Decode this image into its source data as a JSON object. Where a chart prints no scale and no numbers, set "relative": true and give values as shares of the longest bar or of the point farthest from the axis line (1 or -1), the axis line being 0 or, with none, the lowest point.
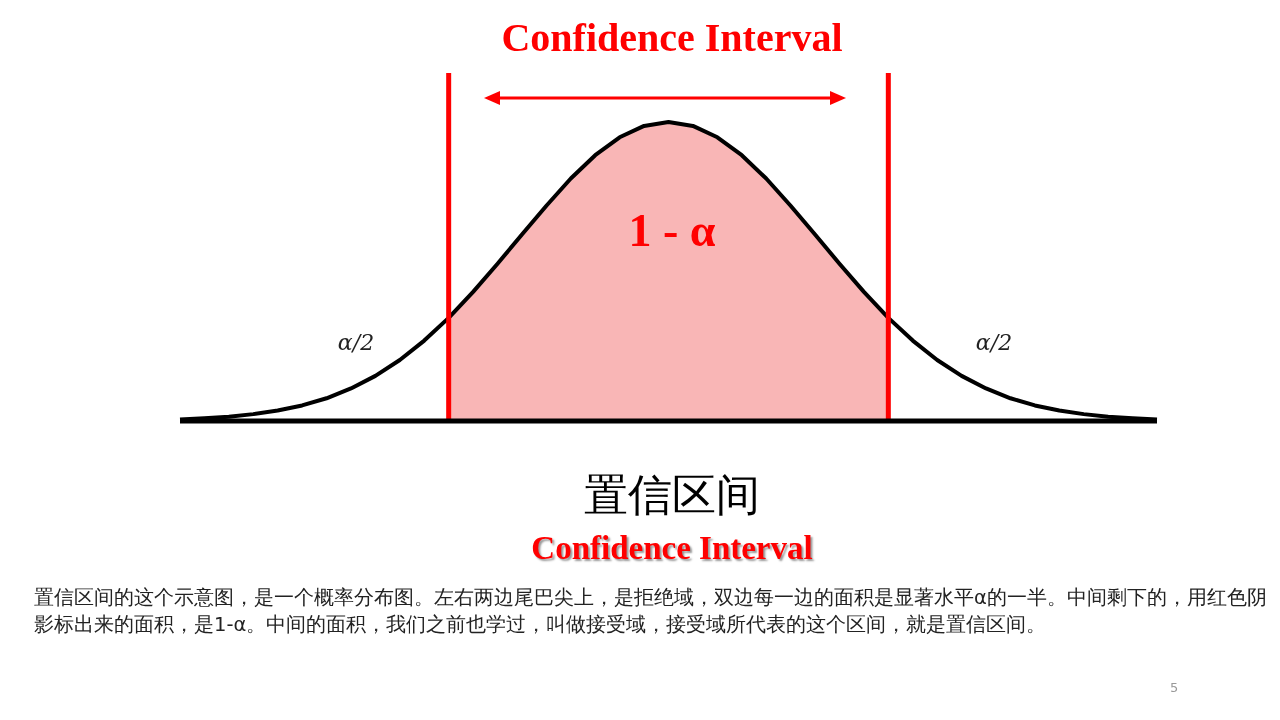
{
  "chart_data": {
    "type": "line",
    "relative": true,
    "title": "Confidence Interval",
    "xlabel": "置信区间",
    "categories": [
      null,
      null,
      null,
      null,
      null,
      null,
      null,
      null,
      null,
      null,
      null,
      null,
      null,
      null,
      null,
      null,
      null,
      null,
      null,
      null,
      null,
      null,
      null,
      null,
      null,
      null,
      null,
      null,
      null,
      null,
      null,
      null,
      null,
      null,
      null,
      null,
      null,
      null,
      null,
      null,
      null
    ],
    "series": [
      {
        "type": "area",
        "color": "#f9b6b6",
        "values": [
          null,
          null,
          null,
          null,
          null,
          null,
          null,
          null,
          null,
          null,
          null,
          0.345,
          0.432,
          0.526,
          0.624,
          0.72,
          0.811,
          0.889,
          0.949,
          0.987,
          1,
          0.987,
          0.949,
          0.889,
          0.811,
          0.72,
          0.624,
          0.526,
          0.432,
          0.345,
          null,
          null,
          null,
          null,
          null,
          null,
          null,
          null,
          null,
          null,
          null
        ]
      },
      {
        "color": "#000000",
        "values": [
          0.005,
          0.009,
          0.014,
          0.023,
          0.035,
          0.052,
          0.076,
          0.109,
          0.151,
          0.204,
          0.269,
          0.345,
          0.432,
          0.526,
          0.624,
          0.72,
          0.811,
          0.889,
          0.949,
          0.987,
          1,
          0.987,
          0.949,
          0.889,
          0.811,
          0.72,
          0.624,
          0.526,
          0.432,
          0.345,
          0.269,
          0.204,
          0.151,
          0.109,
          0.076,
          0.052,
          0.035,
          0.023,
          0.014,
          0.009,
          0.005
        ]
      }
    ],
    "annotations": [
      "1 - α",
      "α/2",
      "α/2",
      "Confidence Interval",
      "置信区间的这个示意图，是一个概率分布图。左右两边尾巴尖上，是拒绝域，双边每一边的面积是显著水平α的一半。中间剩下的，用红色阴影标出来的面积，是1-α。中间的面积，我们之前也学过，叫做接受域，接受域所代表的这个区间，就是置信区间。",
      "5"
    ]
  }
}
